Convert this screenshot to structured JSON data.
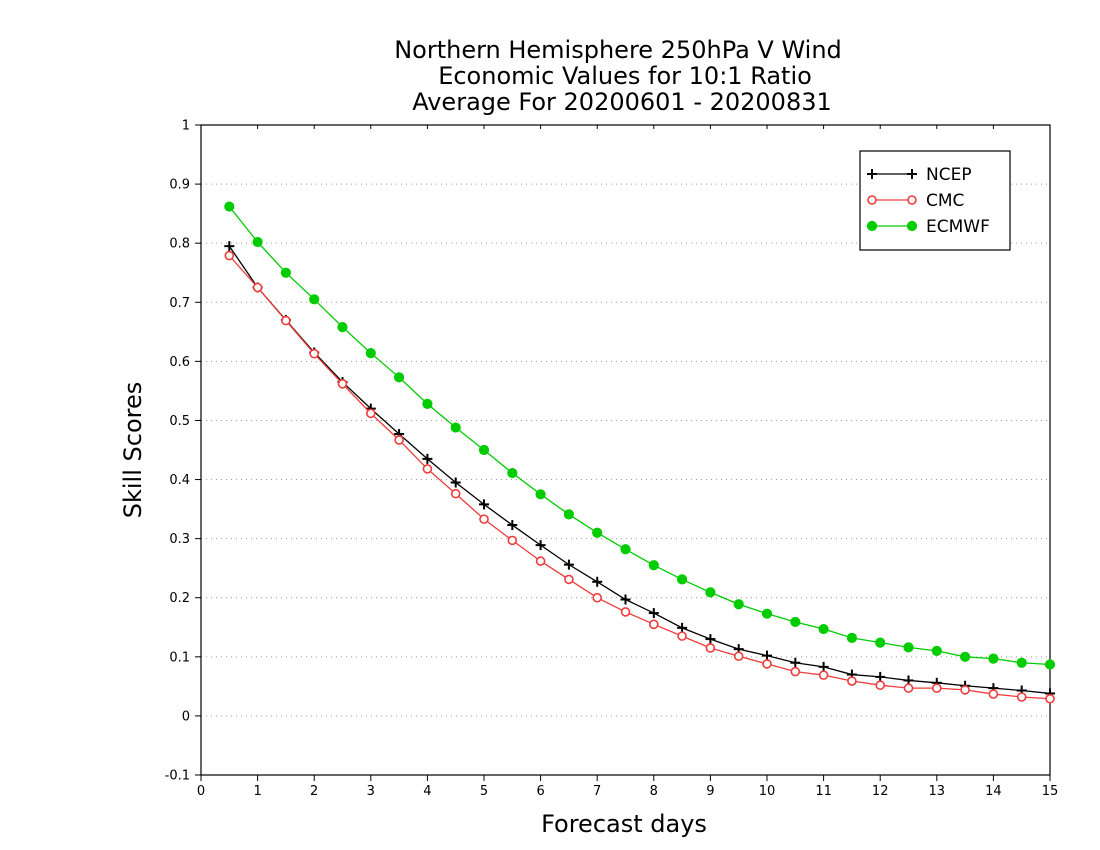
{
  "chart_data": {
    "type": "line",
    "title": [
      "Northern Hemisphere 250hPa V Wind",
      "Economic Values for 10:1 Ratio",
      "Average For 20200601 - 20200831"
    ],
    "xlabel": "Forecast days",
    "ylabel": "Skill Scores",
    "xlim": [
      0,
      15
    ],
    "ylim": [
      -0.1,
      1
    ],
    "xticks": [
      "0",
      "1",
      "2",
      "3",
      "4",
      "5",
      "6",
      "7",
      "8",
      "9",
      "10",
      "11",
      "12",
      "13",
      "14",
      "15"
    ],
    "yticks": [
      "-0.1",
      "0",
      "0.1",
      "0.2",
      "0.3",
      "0.4",
      "0.5",
      "0.6",
      "0.7",
      "0.8",
      "0.9",
      "1"
    ],
    "ytick_values": [
      -0.1,
      0,
      0.1,
      0.2,
      0.3,
      0.4,
      0.5,
      0.6,
      0.7,
      0.8,
      0.9,
      1
    ],
    "grid": true,
    "legend_position": "top-right",
    "x": [
      0.5,
      1,
      1.5,
      2,
      2.5,
      3,
      3.5,
      4,
      4.5,
      5,
      5.5,
      6,
      6.5,
      7,
      7.5,
      8,
      8.5,
      9,
      9.5,
      10,
      10.5,
      11,
      11.5,
      12,
      12.5,
      13,
      13.5,
      14,
      14.5,
      15
    ],
    "series": [
      {
        "name": "NCEP",
        "color": "#000000",
        "marker": "plus",
        "values": [
          0.795,
          0.725,
          0.67,
          0.615,
          0.565,
          0.52,
          0.477,
          0.435,
          0.395,
          0.358,
          0.323,
          0.289,
          0.256,
          0.227,
          0.197,
          0.174,
          0.149,
          0.13,
          0.113,
          0.102,
          0.09,
          0.083,
          0.07,
          0.066,
          0.06,
          0.056,
          0.051,
          0.047,
          0.043,
          0.038
        ]
      },
      {
        "name": "CMC",
        "color": "#ef3b3b",
        "marker": "open-circle",
        "values": [
          0.779,
          0.725,
          0.669,
          0.613,
          0.562,
          0.512,
          0.467,
          0.418,
          0.376,
          0.333,
          0.297,
          0.262,
          0.231,
          0.2,
          0.176,
          0.155,
          0.135,
          0.115,
          0.101,
          0.088,
          0.075,
          0.069,
          0.059,
          0.052,
          0.047,
          0.047,
          0.044,
          0.037,
          0.032,
          0.029
        ]
      },
      {
        "name": "ECMWF",
        "color": "#00cc00",
        "marker": "filled-circle",
        "values": [
          0.862,
          0.802,
          0.75,
          0.705,
          0.658,
          0.614,
          0.573,
          0.528,
          0.488,
          0.45,
          0.411,
          0.375,
          0.341,
          0.31,
          0.282,
          0.255,
          0.231,
          0.209,
          0.189,
          0.173,
          0.159,
          0.147,
          0.132,
          0.124,
          0.116,
          0.11,
          0.1,
          0.097,
          0.09,
          0.087
        ]
      }
    ]
  }
}
